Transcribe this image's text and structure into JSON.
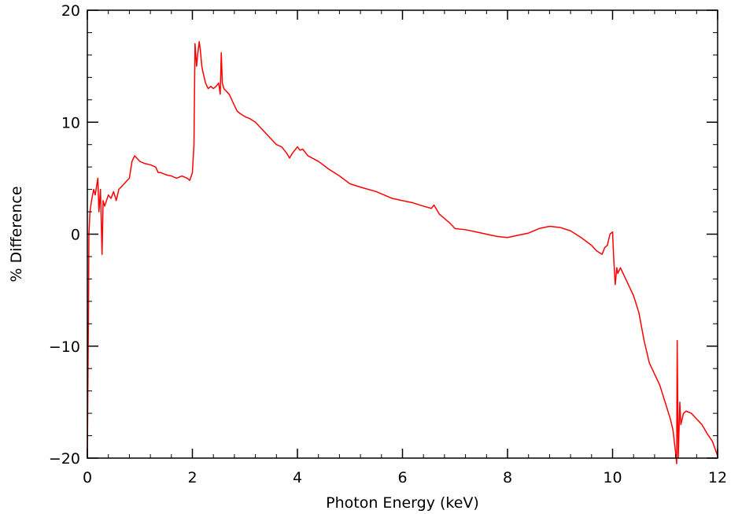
{
  "chart_data": {
    "type": "line",
    "title": "",
    "xlabel": "Photon Energy (keV)",
    "ylabel": "% Difference",
    "xlim": [
      0,
      12
    ],
    "ylim": [
      -20,
      20
    ],
    "grid": false,
    "xticks": [
      0,
      2,
      4,
      6,
      8,
      10,
      12
    ],
    "yticks": [
      -20,
      -10,
      0,
      10,
      20
    ],
    "x_tick_labels": [
      "0",
      "2",
      "4",
      "6",
      "8",
      "10",
      "12"
    ],
    "y_tick_labels": [
      "−20",
      "−10",
      "0",
      "10",
      "20"
    ],
    "series": [
      {
        "color": "#ff0000",
        "x": [
          0.0,
          0.02,
          0.03,
          0.05,
          0.08,
          0.12,
          0.15,
          0.2,
          0.22,
          0.25,
          0.28,
          0.3,
          0.33,
          0.4,
          0.45,
          0.5,
          0.55,
          0.6,
          0.7,
          0.8,
          0.85,
          0.9,
          1.0,
          1.1,
          1.2,
          1.3,
          1.35,
          1.4,
          1.5,
          1.6,
          1.7,
          1.8,
          1.9,
          1.95,
          2.0,
          2.03,
          2.05,
          2.08,
          2.1,
          2.13,
          2.15,
          2.18,
          2.2,
          2.25,
          2.3,
          2.35,
          2.4,
          2.45,
          2.5,
          2.53,
          2.55,
          2.57,
          2.6,
          2.7,
          2.8,
          2.85,
          2.9,
          3.0,
          3.1,
          3.2,
          3.3,
          3.4,
          3.5,
          3.6,
          3.7,
          3.8,
          3.85,
          3.9,
          4.0,
          4.05,
          4.1,
          4.2,
          4.4,
          4.6,
          4.8,
          5.0,
          5.2,
          5.5,
          5.8,
          6.0,
          6.2,
          6.4,
          6.55,
          6.6,
          6.7,
          6.9,
          7.0,
          7.2,
          7.4,
          7.6,
          7.8,
          8.0,
          8.2,
          8.4,
          8.6,
          8.8,
          9.0,
          9.2,
          9.4,
          9.6,
          9.7,
          9.8,
          9.85,
          9.9,
          9.95,
          10.0,
          10.02,
          10.05,
          10.08,
          10.1,
          10.15,
          10.2,
          10.3,
          10.4,
          10.5,
          10.6,
          10.7,
          10.8,
          10.9,
          11.0,
          11.1,
          11.15,
          11.2,
          11.22,
          11.23,
          11.25,
          11.28,
          11.3,
          11.35,
          11.4,
          11.5,
          11.6,
          11.7,
          11.8,
          11.9,
          12.0
        ],
        "y": [
          -20.0,
          -8.0,
          0.0,
          2.0,
          3.0,
          4.0,
          3.5,
          5.0,
          2.0,
          4.0,
          -1.8,
          3.0,
          2.5,
          3.5,
          3.2,
          3.8,
          3.0,
          4.0,
          4.5,
          5.0,
          6.5,
          7.0,
          6.5,
          6.3,
          6.2,
          6.0,
          5.5,
          5.5,
          5.3,
          5.2,
          5.0,
          5.2,
          5.0,
          4.8,
          5.5,
          8.0,
          17.0,
          15.0,
          16.0,
          17.2,
          16.5,
          15.0,
          14.5,
          13.5,
          13.0,
          13.2,
          13.0,
          13.2,
          13.5,
          12.5,
          16.2,
          13.5,
          13.0,
          12.5,
          11.5,
          11.0,
          10.8,
          10.5,
          10.3,
          10.0,
          9.5,
          9.0,
          8.5,
          8.0,
          7.8,
          7.2,
          6.8,
          7.2,
          7.8,
          7.5,
          7.6,
          7.0,
          6.5,
          5.8,
          5.2,
          4.5,
          4.2,
          3.8,
          3.2,
          3.0,
          2.8,
          2.5,
          2.3,
          2.6,
          1.8,
          1.0,
          0.5,
          0.4,
          0.2,
          0.0,
          -0.2,
          -0.3,
          -0.1,
          0.1,
          0.5,
          0.7,
          0.6,
          0.3,
          -0.3,
          -1.0,
          -1.5,
          -1.8,
          -1.2,
          -1.0,
          0.0,
          0.2,
          -2.0,
          -4.5,
          -3.0,
          -3.5,
          -3.0,
          -3.5,
          -4.5,
          -5.5,
          -7.0,
          -9.5,
          -11.5,
          -12.5,
          -13.5,
          -15.0,
          -16.5,
          -17.5,
          -19.5,
          -21.0,
          -9.5,
          -20.0,
          -15.0,
          -17.0,
          -16.0,
          -15.8,
          -16.0,
          -16.5,
          -17.0,
          -17.8,
          -18.5,
          -19.8
        ]
      }
    ]
  }
}
